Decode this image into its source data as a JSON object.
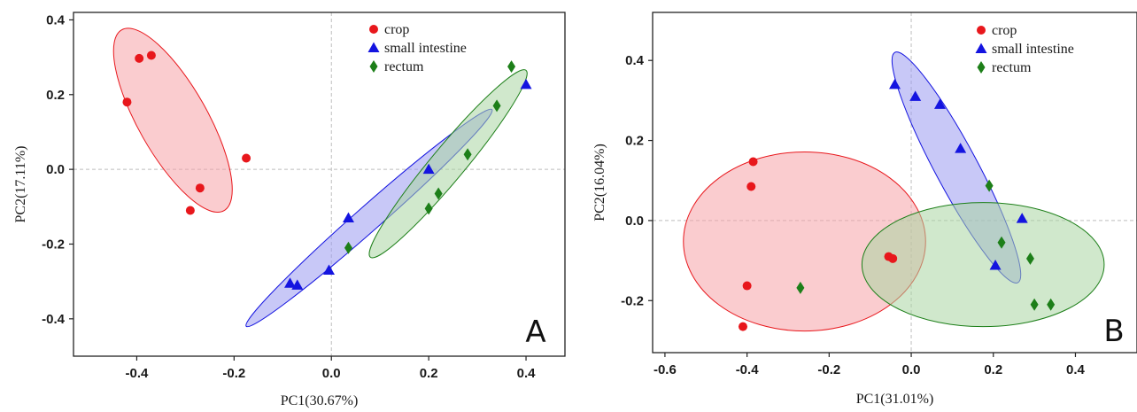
{
  "chart_data": [
    {
      "type": "scatter",
      "panel_label": "A",
      "xlabel": "PC1(30.67%)",
      "ylabel": "PC2(17.11%)",
      "xlim": [
        -0.53,
        0.48
      ],
      "ylim": [
        -0.5,
        0.42
      ],
      "xticks": [
        -0.4,
        -0.2,
        0.0,
        0.2,
        0.4
      ],
      "xtick_labels": [
        "-0.4",
        "-0.2",
        "0.0",
        "0.2",
        "0.4"
      ],
      "yticks": [
        -0.4,
        -0.2,
        0.0,
        0.2,
        0.4
      ],
      "ytick_labels": [
        "-0.4",
        "-0.2",
        "0.0",
        "0.2",
        "0.4"
      ],
      "zero_lines": true,
      "legend_position": "top-right",
      "series": [
        {
          "name": "crop",
          "marker": "circle",
          "color": "#e8171c",
          "points": [
            [
              -0.395,
              0.297
            ],
            [
              -0.37,
              0.305
            ],
            [
              -0.42,
              0.18
            ],
            [
              -0.175,
              0.03
            ],
            [
              -0.27,
              -0.05
            ],
            [
              -0.29,
              -0.11
            ]
          ],
          "ellipse": {
            "center": [
              -0.3,
              0.105
            ],
            "fill": "#f5a3a8",
            "stroke": "#e8171c",
            "points": [
              [
                -0.46,
                0.31
              ],
              [
                -0.38,
                0.35
              ],
              [
                -0.32,
                0.29
              ],
              [
                -0.2,
                0.03
              ],
              [
                -0.22,
                -0.11
              ],
              [
                -0.28,
                -0.12
              ],
              [
                -0.42,
                0.17
              ]
            ]
          }
        },
        {
          "name": "small intestine",
          "marker": "triangle",
          "color": "#1414e0",
          "points": [
            [
              -0.085,
              -0.305
            ],
            [
              -0.07,
              -0.31
            ],
            [
              -0.005,
              -0.27
            ],
            [
              0.035,
              -0.13
            ],
            [
              0.2,
              0.0
            ],
            [
              0.4,
              0.227
            ]
          ],
          "ellipse": {
            "center": [
              0.105,
              -0.13
            ],
            "fill": "#9b9bf0",
            "stroke": "#1414e0",
            "points": [
              [
                -0.175,
                -0.42
              ],
              [
                0.33,
                0.16
              ]
            ]
          }
        },
        {
          "name": "rectum",
          "marker": "diamond",
          "color": "#1d7f19",
          "points": [
            [
              0.37,
              0.275
            ],
            [
              0.34,
              0.17
            ],
            [
              0.28,
              0.04
            ],
            [
              0.22,
              -0.065
            ],
            [
              0.2,
              -0.105
            ],
            [
              0.035,
              -0.21
            ]
          ],
          "ellipse": {
            "center": [
              0.23,
              -0.025
            ],
            "fill": "#a9d6a3",
            "stroke": "#1d7f19",
            "points": [
              [
                0.08,
                -0.235
              ],
              [
                0.4,
                0.265
              ]
            ]
          }
        }
      ]
    },
    {
      "type": "scatter",
      "panel_label": "B",
      "xlabel": "PC1(31.01%)",
      "ylabel": "PC2(16.04%)",
      "xlim": [
        -0.63,
        0.55
      ],
      "ylim": [
        -0.33,
        0.52
      ],
      "xticks": [
        -0.6,
        -0.4,
        -0.2,
        0.0,
        0.2,
        0.4
      ],
      "xtick_labels": [
        "-0.6",
        "-0.4",
        "-0.2",
        "0.0",
        "0.2",
        "0.4"
      ],
      "yticks": [
        -0.2,
        0.0,
        0.2,
        0.4
      ],
      "ytick_labels": [
        "-0.2",
        "0.0",
        "0.2",
        "0.4"
      ],
      "zero_lines": true,
      "legend_position": "top-right",
      "series": [
        {
          "name": "crop",
          "marker": "circle",
          "color": "#e8171c",
          "points": [
            [
              -0.385,
              0.147
            ],
            [
              -0.39,
              0.085
            ],
            [
              -0.055,
              -0.09
            ],
            [
              -0.045,
              -0.095
            ],
            [
              -0.4,
              -0.163
            ],
            [
              -0.41,
              -0.265
            ]
          ],
          "ellipse": {
            "center": [
              -0.26,
              -0.04
            ],
            "fill": "#f5a3a8",
            "stroke": "#e8171c",
            "points": [
              [
                -0.555,
                -0.04
              ],
              [
                0.035,
                -0.04
              ],
              [
                -0.26,
                0.147
              ],
              [
                -0.26,
                -0.276
              ]
            ]
          }
        },
        {
          "name": "small intestine",
          "marker": "triangle",
          "color": "#1414e0",
          "points": [
            [
              -0.04,
              0.34
            ],
            [
              0.01,
              0.31
            ],
            [
              0.07,
              0.29
            ],
            [
              0.12,
              0.18
            ],
            [
              0.27,
              0.005
            ],
            [
              0.205,
              -0.112
            ]
          ],
          "ellipse": {
            "center": [
              0.11,
              0.135
            ],
            "fill": "#9b9bf0",
            "stroke": "#1414e0",
            "points": [
              [
                -0.04,
                0.42
              ],
              [
                0.26,
                -0.155
              ]
            ]
          }
        },
        {
          "name": "rectum",
          "marker": "diamond",
          "color": "#1d7f19",
          "points": [
            [
              0.19,
              0.087
            ],
            [
              0.22,
              -0.055
            ],
            [
              0.29,
              -0.095
            ],
            [
              0.3,
              -0.21
            ],
            [
              0.34,
              -0.21
            ],
            [
              -0.27,
              -0.168
            ]
          ],
          "ellipse": {
            "center": [
              0.175,
              -0.11
            ],
            "fill": "#a9d6a3",
            "stroke": "#1d7f19",
            "points": [
              [
                -0.12,
                -0.11
              ],
              [
                0.47,
                -0.11
              ],
              [
                0.175,
                0.045
              ],
              [
                0.175,
                -0.265
              ]
            ]
          }
        }
      ]
    }
  ]
}
